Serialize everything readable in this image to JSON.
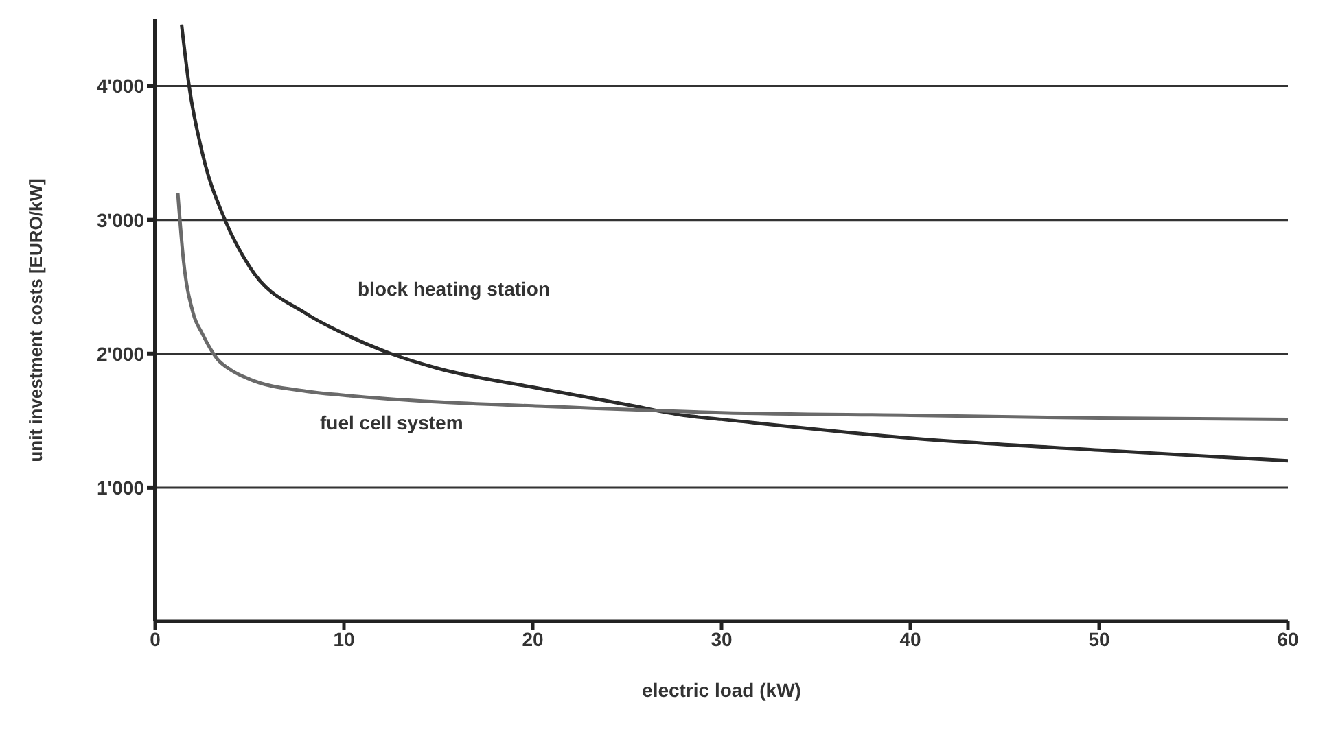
{
  "chart_data": {
    "type": "line",
    "xlabel": "electric load (kW)",
    "ylabel": "unit investment costs [EURO/kW]",
    "xlim": [
      0,
      60
    ],
    "xticks": [
      0,
      10,
      20,
      30,
      40,
      50,
      60
    ],
    "ylim": [
      0,
      4500
    ],
    "yticks": [
      {
        "value": 1000,
        "label": "1'000"
      },
      {
        "value": 2000,
        "label": "2'000"
      },
      {
        "value": 3000,
        "label": "3'000"
      },
      {
        "value": 4000,
        "label": "4'000"
      }
    ],
    "grid": "y",
    "marker": "none",
    "line_style": "solid",
    "series": [
      {
        "name": "block heating station",
        "color": "#2a2a2a",
        "x": [
          1.4,
          1.8,
          2.5,
          3.7,
          5,
          8,
          10,
          12.5,
          15,
          20,
          25,
          28,
          30,
          40,
          50,
          60
        ],
        "values": [
          4460,
          4000,
          3500,
          3000,
          2650,
          2300,
          2150,
          2000,
          1890,
          1750,
          1620,
          1540,
          1510,
          1370,
          1280,
          1200
        ]
      },
      {
        "name": "fuel cell system",
        "color": "#6a6a6a",
        "x": [
          1.2,
          1.5,
          2,
          2.5,
          3.3,
          4,
          5,
          8,
          10,
          15,
          20,
          30,
          40,
          50,
          60
        ],
        "values": [
          3200,
          2700,
          2310,
          2150,
          1960,
          1880,
          1810,
          1720,
          1690,
          1640,
          1610,
          1560,
          1540,
          1520,
          1510
        ]
      }
    ]
  }
}
